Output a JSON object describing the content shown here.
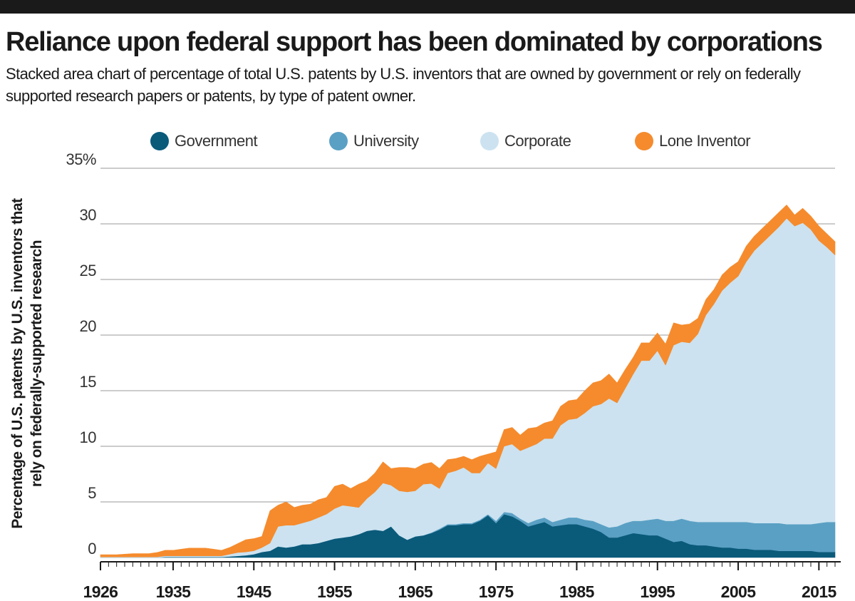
{
  "title": "Reliance upon federal support has been dominated by corporations",
  "subtitle": "Stacked area chart of percentage of total U.S. patents by U.S. inventors that are owned by government or rely on federally supported research papers or patents, by type of patent owner.",
  "chart_data": {
    "type": "area",
    "stacked": true,
    "ylabel_line1": "Percentage of U.S. patents by U.S. inventors that",
    "ylabel_line2": "rely on federally-supported research",
    "xlim": [
      1926,
      2017
    ],
    "ylim": [
      0,
      35
    ],
    "yticks": [
      0,
      5,
      10,
      15,
      20,
      25,
      30,
      35
    ],
    "ytick_labels": [
      "0",
      "5",
      "10",
      "15",
      "20",
      "25",
      "30",
      "35%"
    ],
    "xticks": [
      1926,
      1935,
      1945,
      1955,
      1965,
      1975,
      1985,
      1995,
      2005,
      2015
    ],
    "xtick_labels": [
      "1926",
      "1935",
      "1945",
      "1955",
      "1965",
      "1975",
      "1985",
      "1995",
      "2005",
      "2015"
    ],
    "grid": "horizontal",
    "legend_position": "top",
    "x": [
      1926,
      1927,
      1928,
      1929,
      1930,
      1931,
      1932,
      1933,
      1934,
      1935,
      1936,
      1937,
      1938,
      1939,
      1940,
      1941,
      1942,
      1943,
      1944,
      1945,
      1946,
      1947,
      1948,
      1949,
      1950,
      1951,
      1952,
      1953,
      1954,
      1955,
      1956,
      1957,
      1958,
      1959,
      1960,
      1961,
      1962,
      1963,
      1964,
      1965,
      1966,
      1967,
      1968,
      1969,
      1970,
      1971,
      1972,
      1973,
      1974,
      1975,
      1976,
      1977,
      1978,
      1979,
      1980,
      1981,
      1982,
      1983,
      1984,
      1985,
      1986,
      1987,
      1988,
      1989,
      1990,
      1991,
      1992,
      1993,
      1994,
      1995,
      1996,
      1997,
      1998,
      1999,
      2000,
      2001,
      2002,
      2003,
      2004,
      2005,
      2006,
      2007,
      2008,
      2009,
      2010,
      2011,
      2012,
      2013,
      2014,
      2015,
      2016,
      2017
    ],
    "series": [
      {
        "name": "Government",
        "color": "#0a5a7a",
        "values": [
          0,
          0,
          0,
          0,
          0,
          0,
          0,
          0,
          0.05,
          0.05,
          0.05,
          0.05,
          0.05,
          0.05,
          0.05,
          0.05,
          0.1,
          0.15,
          0.2,
          0.3,
          0.5,
          0.6,
          1.0,
          0.9,
          1.0,
          1.2,
          1.2,
          1.3,
          1.5,
          1.7,
          1.8,
          1.9,
          2.1,
          2.4,
          2.5,
          2.4,
          2.8,
          2.0,
          1.6,
          1.9,
          2.0,
          2.2,
          2.5,
          2.9,
          2.9,
          3.0,
          3.0,
          3.3,
          3.8,
          3.1,
          3.9,
          3.7,
          3.3,
          2.8,
          3.0,
          3.2,
          2.8,
          2.9,
          3.0,
          3.0,
          2.8,
          2.6,
          2.3,
          1.8,
          1.8,
          2.0,
          2.2,
          2.1,
          2.0,
          2.0,
          1.7,
          1.4,
          1.5,
          1.2,
          1.1,
          1.1,
          1.0,
          0.9,
          0.9,
          0.8,
          0.8,
          0.7,
          0.7,
          0.7,
          0.6,
          0.6,
          0.6,
          0.6,
          0.6,
          0.5,
          0.5,
          0.5
        ]
      },
      {
        "name": "University",
        "color": "#5aa0c4",
        "values": [
          0,
          0,
          0,
          0,
          0,
          0,
          0,
          0,
          0,
          0,
          0,
          0,
          0,
          0,
          0,
          0,
          0,
          0,
          0,
          0,
          0,
          0,
          0,
          0,
          0,
          0,
          0,
          0,
          0,
          0,
          0,
          0,
          0,
          0,
          0,
          0,
          0,
          0,
          0,
          0,
          0,
          0.05,
          0.1,
          0.1,
          0.1,
          0.1,
          0.1,
          0.1,
          0.1,
          0.2,
          0.2,
          0.3,
          0.2,
          0.3,
          0.4,
          0.4,
          0.4,
          0.5,
          0.6,
          0.6,
          0.6,
          0.7,
          0.7,
          0.9,
          1.0,
          1.1,
          1.1,
          1.2,
          1.4,
          1.5,
          1.6,
          1.9,
          2.0,
          2.1,
          2.1,
          2.1,
          2.2,
          2.3,
          2.3,
          2.4,
          2.4,
          2.4,
          2.4,
          2.4,
          2.5,
          2.4,
          2.4,
          2.4,
          2.4,
          2.6,
          2.7,
          2.7
        ]
      },
      {
        "name": "Corporate",
        "color": "#cce2f0",
        "values": [
          0.05,
          0.05,
          0.05,
          0.05,
          0.05,
          0.05,
          0.05,
          0.05,
          0.1,
          0.1,
          0.1,
          0.1,
          0.1,
          0.1,
          0.1,
          0.1,
          0.2,
          0.3,
          0.3,
          0.3,
          0.4,
          0.7,
          1.8,
          2.0,
          1.9,
          1.9,
          2.1,
          2.3,
          2.4,
          2.7,
          2.9,
          2.7,
          2.4,
          2.9,
          3.4,
          4.3,
          3.7,
          4.0,
          4.3,
          4.1,
          4.6,
          4.4,
          3.6,
          4.6,
          4.8,
          5.0,
          4.5,
          4.2,
          4.6,
          4.7,
          5.9,
          6.2,
          6.1,
          6.8,
          6.8,
          7.1,
          7.5,
          8.5,
          8.8,
          8.9,
          9.6,
          10.3,
          10.8,
          11.6,
          11.1,
          12.1,
          13.2,
          14.4,
          14.3,
          15.1,
          14.0,
          15.8,
          15.9,
          16.0,
          16.9,
          18.6,
          19.6,
          20.8,
          21.5,
          22.1,
          23.4,
          24.5,
          25.2,
          25.9,
          26.6,
          27.5,
          26.8,
          27.1,
          26.5,
          25.4,
          24.7,
          24.0
        ]
      },
      {
        "name": "Lone Inventor",
        "color": "#f58b2d",
        "values": [
          0.2,
          0.2,
          0.2,
          0.25,
          0.3,
          0.3,
          0.3,
          0.4,
          0.5,
          0.5,
          0.6,
          0.7,
          0.7,
          0.7,
          0.6,
          0.5,
          0.6,
          0.8,
          1.1,
          1.1,
          1.0,
          2.9,
          1.9,
          2.1,
          1.6,
          1.6,
          1.5,
          1.6,
          1.5,
          2.0,
          1.9,
          1.6,
          2.1,
          1.6,
          1.7,
          1.9,
          1.5,
          2.1,
          2.2,
          2.0,
          1.8,
          1.9,
          1.8,
          1.2,
          1.1,
          1.0,
          1.2,
          1.5,
          0.8,
          1.5,
          1.5,
          1.5,
          1.4,
          1.7,
          1.5,
          1.4,
          1.6,
          1.7,
          1.7,
          1.7,
          2.0,
          2.1,
          2.1,
          2.2,
          1.8,
          1.7,
          1.5,
          1.6,
          1.6,
          1.6,
          1.9,
          2.0,
          1.5,
          1.7,
          1.4,
          1.4,
          1.3,
          1.4,
          1.4,
          1.3,
          1.4,
          1.3,
          1.3,
          1.3,
          1.3,
          1.2,
          1.0,
          1.3,
          1.2,
          1.3,
          1.2,
          1.2
        ]
      }
    ]
  }
}
